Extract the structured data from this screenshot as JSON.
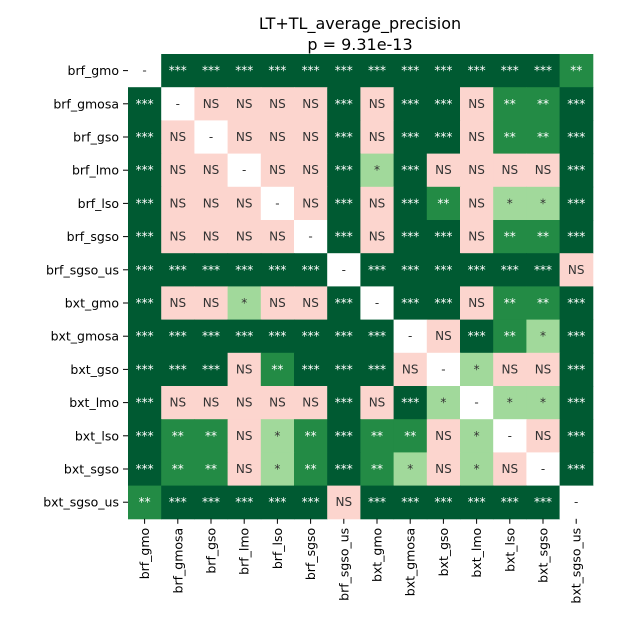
{
  "chart_data": {
    "type": "heatmap",
    "title": "LT+TL_average_precision",
    "subtitle": "p = 9.31e-13",
    "row_labels": [
      "brf_gmo",
      "brf_gmosa",
      "brf_gso",
      "brf_lmo",
      "brf_lso",
      "brf_sgso",
      "brf_sgso_us",
      "bxt_gmo",
      "bxt_gmosa",
      "bxt_gso",
      "bxt_lmo",
      "bxt_lso",
      "bxt_sgso",
      "bxt_sgso_us"
    ],
    "col_labels": [
      "brf_gmo",
      "brf_gmosa",
      "brf_gso",
      "brf_lmo",
      "brf_lso",
      "brf_sgso",
      "brf_sgso_us",
      "bxt_gmo",
      "bxt_gmosa",
      "bxt_gso",
      "bxt_lmo",
      "bxt_lso",
      "bxt_sgso",
      "bxt_sgso_us"
    ],
    "matrix": [
      [
        "-",
        "***",
        "***",
        "***",
        "***",
        "***",
        "***",
        "***",
        "***",
        "***",
        "***",
        "***",
        "***",
        "**"
      ],
      [
        "***",
        "-",
        "NS",
        "NS",
        "NS",
        "NS",
        "***",
        "NS",
        "***",
        "***",
        "NS",
        "**",
        "**",
        "***"
      ],
      [
        "***",
        "NS",
        "-",
        "NS",
        "NS",
        "NS",
        "***",
        "NS",
        "***",
        "***",
        "NS",
        "**",
        "**",
        "***"
      ],
      [
        "***",
        "NS",
        "NS",
        "-",
        "NS",
        "NS",
        "***",
        "*",
        "***",
        "NS",
        "NS",
        "NS",
        "NS",
        "***"
      ],
      [
        "***",
        "NS",
        "NS",
        "NS",
        "-",
        "NS",
        "***",
        "NS",
        "***",
        "**",
        "NS",
        "*",
        "*",
        "***"
      ],
      [
        "***",
        "NS",
        "NS",
        "NS",
        "NS",
        "-",
        "***",
        "NS",
        "***",
        "***",
        "NS",
        "**",
        "**",
        "***"
      ],
      [
        "***",
        "***",
        "***",
        "***",
        "***",
        "***",
        "-",
        "***",
        "***",
        "***",
        "***",
        "***",
        "***",
        "NS"
      ],
      [
        "***",
        "NS",
        "NS",
        "*",
        "NS",
        "NS",
        "***",
        "-",
        "***",
        "***",
        "NS",
        "**",
        "**",
        "***"
      ],
      [
        "***",
        "***",
        "***",
        "***",
        "***",
        "***",
        "***",
        "***",
        "-",
        "NS",
        "***",
        "**",
        "*",
        "***"
      ],
      [
        "***",
        "***",
        "***",
        "NS",
        "**",
        "***",
        "***",
        "***",
        "NS",
        "-",
        "*",
        "NS",
        "NS",
        "***"
      ],
      [
        "***",
        "NS",
        "NS",
        "NS",
        "NS",
        "NS",
        "***",
        "NS",
        "***",
        "*",
        "-",
        "*",
        "*",
        "***"
      ],
      [
        "***",
        "**",
        "**",
        "NS",
        "*",
        "**",
        "***",
        "**",
        "**",
        "NS",
        "*",
        "-",
        "NS",
        "***"
      ],
      [
        "***",
        "**",
        "**",
        "NS",
        "*",
        "**",
        "***",
        "**",
        "*",
        "NS",
        "*",
        "NS",
        "-",
        "***"
      ],
      [
        "**",
        "***",
        "***",
        "***",
        "***",
        "***",
        "NS",
        "***",
        "***",
        "***",
        "***",
        "***",
        "***",
        "-"
      ]
    ],
    "colors": {
      "***": "#005a32",
      "**": "#238b45",
      "*": "#a1d99b",
      "NS": "#fcd5ce",
      "-": "#ffffff"
    },
    "text_colors": {
      "***": "#ffffff",
      "**": "#ffffff",
      "*": "#333333",
      "NS": "#333333",
      "-": "#333333"
    }
  }
}
